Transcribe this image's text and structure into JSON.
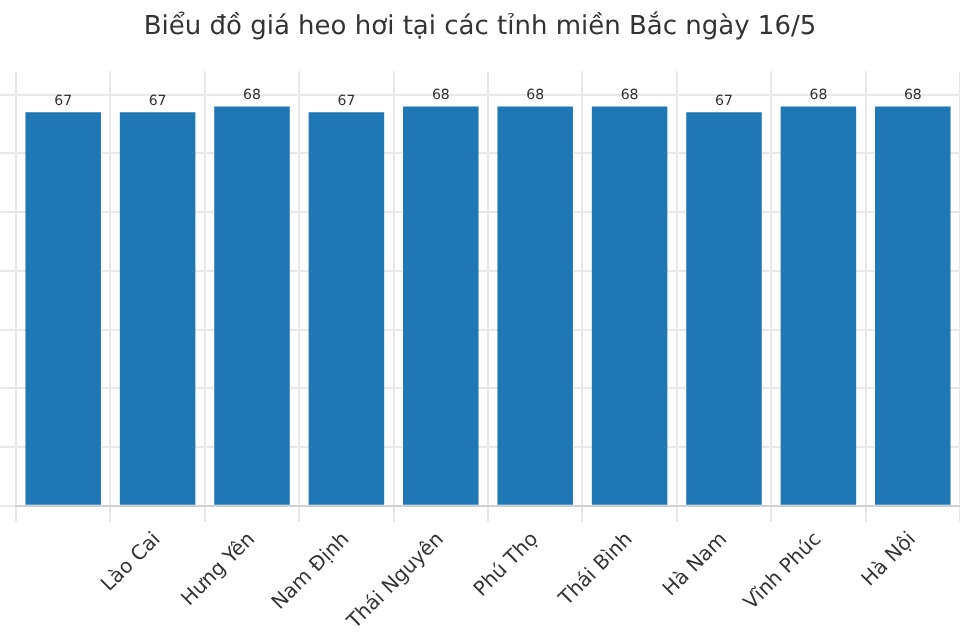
{
  "chart_data": {
    "type": "bar",
    "title": "Biểu đồ giá heo hơi tại các tỉnh miền Bắc ngày 16/5",
    "categories": [
      null,
      "Lào Cai",
      "Hưng Yên",
      "Nam Định",
      "Thái Nguyên",
      "Phú Thọ",
      "Thái Bình",
      "Hà Nam",
      "Vĩnh Phúc",
      "Hà Nội"
    ],
    "values": [
      67,
      67,
      68,
      67,
      68,
      68,
      68,
      67,
      68,
      68
    ],
    "color": "#1f77b4",
    "data_labels": true,
    "grid": true,
    "tick_labels": "x",
    "ylim": [
      0,
      74
    ],
    "yticks": [
      {
        "value": 0,
        "label": null
      },
      {
        "value": 10,
        "label": null
      },
      {
        "value": 20,
        "label": null
      },
      {
        "value": 30,
        "label": null
      },
      {
        "value": 40,
        "label": null
      },
      {
        "value": 50,
        "label": null
      },
      {
        "value": 60,
        "label": null
      },
      {
        "value": 70,
        "label": null
      }
    ]
  }
}
